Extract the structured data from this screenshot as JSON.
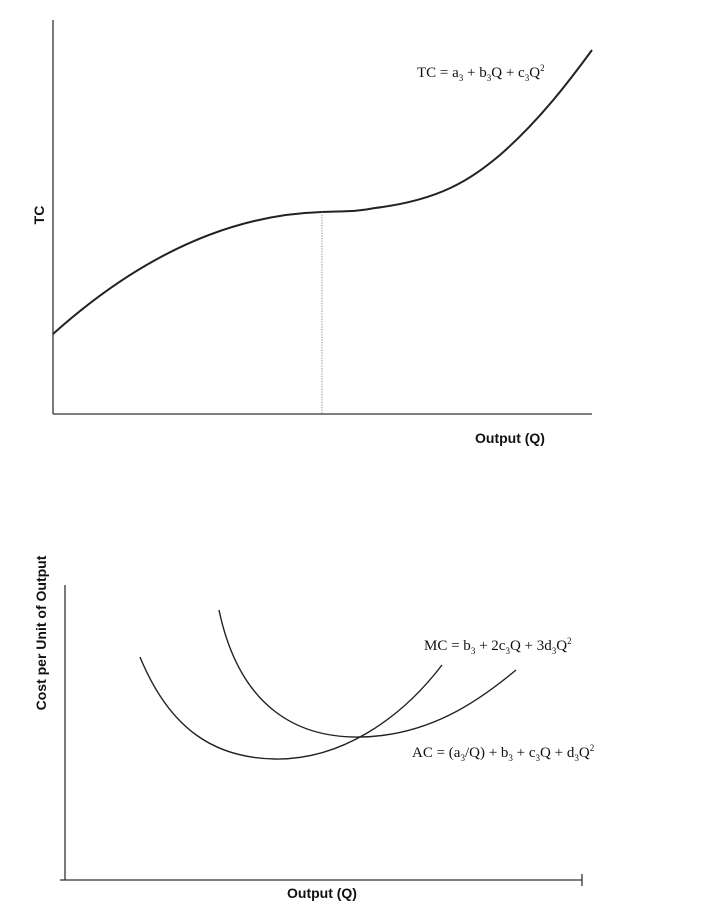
{
  "top_chart": {
    "y_axis_label": "TC",
    "x_axis_label": "Output (Q)",
    "equation": {
      "parts": [
        "TC = a",
        "3",
        " + b",
        "3",
        "Q + c",
        "3",
        "Q",
        "2"
      ]
    }
  },
  "bottom_chart": {
    "y_axis_label": "Cost per Unit of Output",
    "x_axis_label": "Output (Q)",
    "mc_equation": {
      "parts": [
        "MC = b",
        "3",
        " + 2c",
        "3",
        "Q + 3d",
        "3",
        "Q",
        "2"
      ]
    },
    "ac_equation": {
      "parts": [
        "AC = (a",
        "3",
        "/Q) + b",
        "3",
        " + c",
        "3",
        "Q + d",
        "3",
        "Q",
        "2"
      ]
    }
  }
}
